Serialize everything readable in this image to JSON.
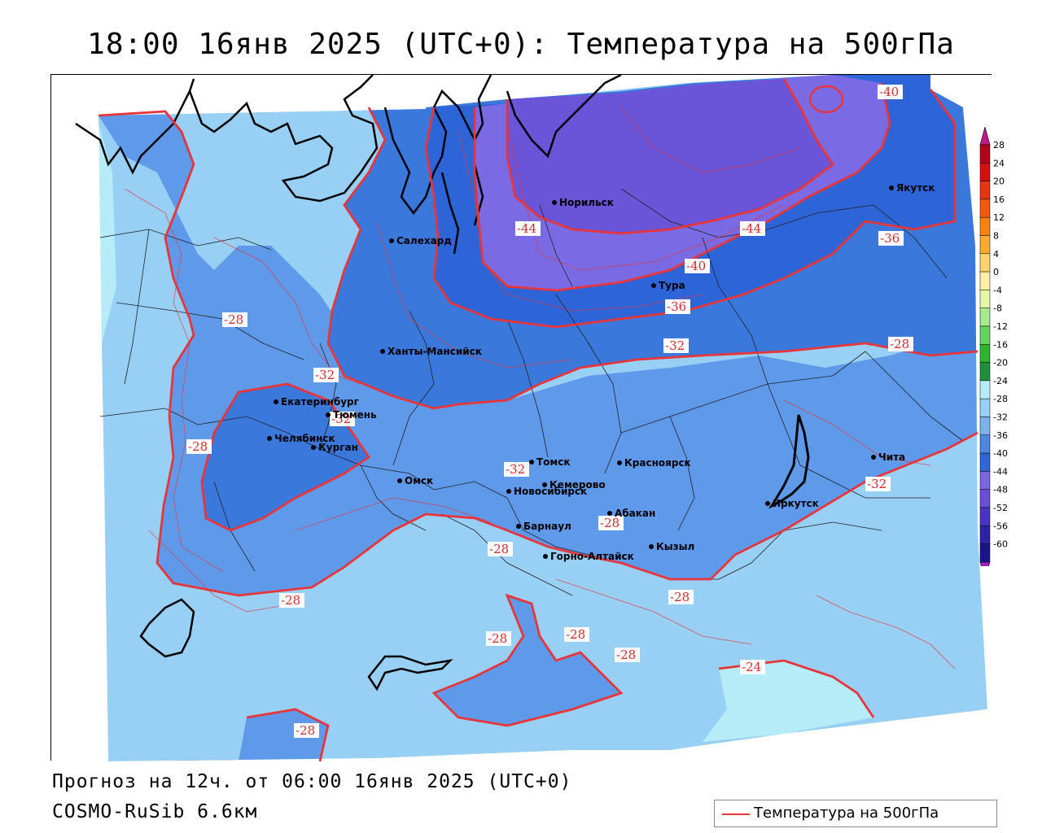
{
  "title": "18:00 16янв 2025 (UTC+0): Температура на 500гПа",
  "forecast_line": "Прогноз на 12ч. от 06:00 16янв 2025 (UTC+0)",
  "model_line": "COSMO-RuSib 6.6км",
  "legend": {
    "label": "Температура на 500гПа",
    "color": "#e8353a"
  },
  "colorbar": {
    "ticks": [
      "28",
      "24",
      "20",
      "16",
      "12",
      "8",
      "4",
      "0",
      "-4",
      "-8",
      "-12",
      "-16",
      "-20",
      "-24",
      "-28",
      "-32",
      "-36",
      "-40",
      "-44",
      "-48",
      "-52",
      "-56",
      "-60"
    ],
    "colors": [
      "#b3001b",
      "#d40f0f",
      "#e8330f",
      "#f25a0f",
      "#f7820f",
      "#fbab2e",
      "#fcd36a",
      "#fff0a6",
      "#e4f7a4",
      "#a6ea8e",
      "#5fd65b",
      "#2cb52c",
      "#1f8f3c",
      "#b6ecf7",
      "#98cff5",
      "#7ab2ee",
      "#4f86e3",
      "#2f66d8",
      "#7a66e0",
      "#6a4ed6",
      "#4a32c2",
      "#2d22a8",
      "#1a148c"
    ],
    "top_arrow_color": "#c0198a",
    "bottom_arrow_color": "#a81bb8"
  },
  "colors": {
    "band_gt_24": "#b6ecf7",
    "band_24_28": "#98cff5",
    "band_28_32": "#5f99ea",
    "band_32_36": "#3a78dc",
    "band_36_40": "#2d65d8",
    "band_40_44": "#7a6ae4",
    "band_44_48": "#6a55d8",
    "isotherm": "#e8353a",
    "coast": "#000000"
  },
  "cities": [
    {
      "name": "Норильск"
    },
    {
      "name": "Якутск"
    },
    {
      "name": "Салехард"
    },
    {
      "name": "Тура"
    },
    {
      "name": "Ханты-Мансийск"
    },
    {
      "name": "Екатеринбург"
    },
    {
      "name": "Тюмень"
    },
    {
      "name": "Челябинск"
    },
    {
      "name": "Курган"
    },
    {
      "name": "Омск"
    },
    {
      "name": "Новосибирск"
    },
    {
      "name": "Томск"
    },
    {
      "name": "Кемерово"
    },
    {
      "name": "Красноярск"
    },
    {
      "name": "Абакан"
    },
    {
      "name": "Барнаул"
    },
    {
      "name": "Горно-Алтайск"
    },
    {
      "name": "Кызыл"
    },
    {
      "name": "Иркутск"
    },
    {
      "name": "Чита"
    }
  ],
  "isotherm_labels": [
    "-40",
    "-44",
    "-44",
    "-36",
    "-40",
    "-36",
    "-32",
    "-32",
    "-28",
    "-32",
    "-32",
    "-28",
    "-32",
    "-28",
    "-28",
    "-28",
    "-28",
    "-28",
    "-28",
    "-28",
    "-28",
    "-24",
    "-28"
  ]
}
